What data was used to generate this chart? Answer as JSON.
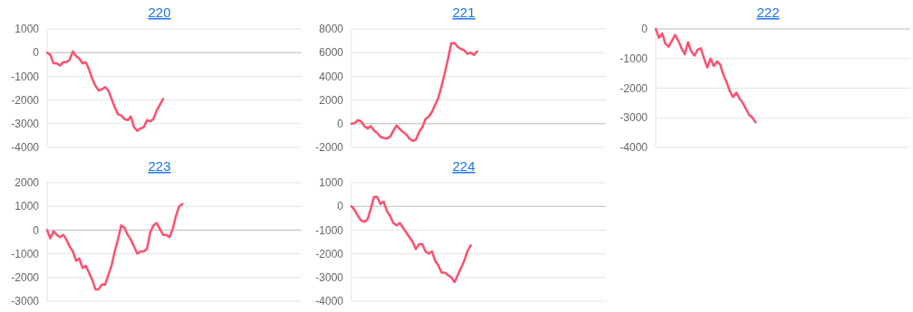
{
  "chart_data": [
    {
      "type": "line",
      "title": "220",
      "categories": [
        null,
        null,
        null,
        null,
        null,
        null,
        null,
        null,
        null,
        null,
        null,
        null,
        null,
        null,
        null,
        null,
        null,
        null,
        null,
        null,
        null,
        null,
        null,
        null,
        null,
        null,
        null,
        null,
        null,
        null,
        null,
        null,
        null,
        null,
        null,
        null,
        null,
        null,
        null,
        null,
        null,
        null,
        null,
        null,
        null,
        null,
        null,
        null,
        null,
        null,
        null,
        null,
        null,
        null,
        null,
        null,
        null,
        null,
        null,
        null,
        null,
        null,
        null,
        null,
        null,
        null,
        null,
        null,
        null,
        null,
        null,
        null,
        null,
        null,
        null,
        null,
        null,
        null,
        null,
        null
      ],
      "series": [
        {
          "color": "#ff4f6f",
          "values": [
            0,
            -100,
            -450,
            -450,
            -550,
            -400,
            -400,
            -300,
            50,
            -150,
            -250,
            -450,
            -400,
            -700,
            -1100,
            -1400,
            -1600,
            -1550,
            -1450,
            -1600,
            -1950,
            -2300,
            -2600,
            -2650,
            -2800,
            -2850,
            -2700,
            -3150,
            -3300,
            -3200,
            -3150,
            -2850,
            -2900,
            -2800,
            -2450,
            -2200,
            -1950,
            null,
            null,
            null,
            null,
            null,
            null,
            null,
            null,
            null,
            null,
            null,
            null,
            null,
            null,
            null,
            null,
            null,
            null,
            null,
            null,
            null,
            null,
            null,
            null,
            null,
            null,
            null,
            null,
            null,
            null,
            null,
            null,
            null,
            null,
            null,
            null,
            null,
            null,
            null,
            null,
            null,
            null,
            null
          ]
        }
      ],
      "ylim": [
        -4000,
        1000
      ],
      "yticks": [
        -4000,
        -3000,
        -2000,
        -1000,
        0,
        1000
      ],
      "grid": "y",
      "tick_labels": "y"
    },
    {
      "type": "line",
      "title": "221",
      "categories": [
        null,
        null,
        null,
        null,
        null,
        null,
        null,
        null,
        null,
        null,
        null,
        null,
        null,
        null,
        null,
        null,
        null,
        null,
        null,
        null,
        null,
        null,
        null,
        null,
        null,
        null,
        null,
        null,
        null,
        null,
        null,
        null,
        null,
        null,
        null,
        null,
        null,
        null,
        null,
        null,
        null,
        null,
        null,
        null,
        null,
        null,
        null,
        null,
        null,
        null,
        null,
        null,
        null,
        null,
        null,
        null,
        null,
        null,
        null,
        null,
        null,
        null,
        null,
        null,
        null,
        null,
        null,
        null,
        null,
        null,
        null,
        null,
        null,
        null,
        null,
        null,
        null,
        null,
        null,
        null
      ],
      "series": [
        {
          "color": "#ff4f6f",
          "values": [
            0,
            50,
            300,
            200,
            -200,
            -400,
            -200,
            -550,
            -800,
            -1100,
            -1200,
            -1250,
            -1100,
            -600,
            -150,
            -450,
            -700,
            -900,
            -1250,
            -1450,
            -1350,
            -700,
            -300,
            400,
            600,
            1000,
            1600,
            2200,
            3200,
            4300,
            5500,
            6800,
            6800,
            6500,
            6300,
            6200,
            5900,
            6000,
            5800,
            6100,
            null,
            null,
            null,
            null,
            null,
            null,
            null,
            null,
            null,
            null,
            null,
            null,
            null,
            null,
            null,
            null,
            null,
            null,
            null,
            null,
            null,
            null,
            null,
            null,
            null,
            null,
            null,
            null,
            null,
            null,
            null,
            null,
            null,
            null,
            null,
            null,
            null,
            null,
            null,
            null
          ]
        }
      ],
      "ylim": [
        -2000,
        8000
      ],
      "yticks": [
        -2000,
        0,
        2000,
        4000,
        6000,
        8000
      ],
      "grid": "y",
      "tick_labels": "y"
    },
    {
      "type": "line",
      "title": "222",
      "categories": [
        null,
        null,
        null,
        null,
        null,
        null,
        null,
        null,
        null,
        null,
        null,
        null,
        null,
        null,
        null,
        null,
        null,
        null,
        null,
        null,
        null,
        null,
        null,
        null,
        null,
        null,
        null,
        null,
        null,
        null,
        null,
        null,
        null,
        null,
        null,
        null,
        null,
        null,
        null,
        null,
        null,
        null,
        null,
        null,
        null,
        null,
        null,
        null,
        null,
        null,
        null,
        null,
        null,
        null,
        null,
        null,
        null,
        null,
        null,
        null,
        null,
        null,
        null,
        null,
        null,
        null,
        null,
        null,
        null,
        null,
        null,
        null,
        null,
        null,
        null,
        null,
        null,
        null,
        null,
        null
      ],
      "series": [
        {
          "color": "#ff4f6f",
          "values": [
            0,
            -300,
            -150,
            -500,
            -600,
            -400,
            -200,
            -400,
            -650,
            -850,
            -450,
            -750,
            -900,
            -700,
            -650,
            -1000,
            -1300,
            -1000,
            -1250,
            -1100,
            -1200,
            -1550,
            -1800,
            -2100,
            -2300,
            -2150,
            -2350,
            -2500,
            -2700,
            -2900,
            -3000,
            -3150,
            null,
            null,
            null,
            null,
            null,
            null,
            null,
            null,
            null,
            null,
            null,
            null,
            null,
            null,
            null,
            null,
            null,
            null,
            null,
            null,
            null,
            null,
            null,
            null,
            null,
            null,
            null,
            null,
            null,
            null,
            null,
            null,
            null,
            null,
            null,
            null,
            null,
            null,
            null,
            null,
            null,
            null,
            null,
            null,
            null,
            null,
            null,
            null
          ]
        }
      ],
      "ylim": [
        -4000,
        0
      ],
      "yticks": [
        -4000,
        -3000,
        -2000,
        -1000,
        0
      ],
      "grid": "y",
      "tick_labels": "y"
    },
    {
      "type": "line",
      "title": "223",
      "categories": [
        null,
        null,
        null,
        null,
        null,
        null,
        null,
        null,
        null,
        null,
        null,
        null,
        null,
        null,
        null,
        null,
        null,
        null,
        null,
        null,
        null,
        null,
        null,
        null,
        null,
        null,
        null,
        null,
        null,
        null,
        null,
        null,
        null,
        null,
        null,
        null,
        null,
        null,
        null,
        null,
        null,
        null,
        null,
        null,
        null,
        null,
        null,
        null,
        null,
        null,
        null,
        null,
        null,
        null,
        null,
        null,
        null,
        null,
        null,
        null,
        null,
        null,
        null,
        null,
        null,
        null,
        null,
        null,
        null,
        null,
        null,
        null,
        null,
        null,
        null,
        null,
        null,
        null,
        null,
        null
      ],
      "series": [
        {
          "color": "#ff4f6f",
          "values": [
            0,
            -350,
            -50,
            -200,
            -300,
            -200,
            -400,
            -700,
            -900,
            -1300,
            -1200,
            -1600,
            -1500,
            -1800,
            -2100,
            -2500,
            -2500,
            -2300,
            -2300,
            -1900,
            -1500,
            -900,
            -400,
            200,
            100,
            -200,
            -400,
            -700,
            -1000,
            -900,
            -900,
            -800,
            -100,
            200,
            300,
            50,
            -200,
            -200,
            -300,
            50,
            600,
            1000,
            1100,
            null,
            null,
            null,
            null,
            null,
            null,
            null,
            null,
            null,
            null,
            null,
            null,
            null,
            null,
            null,
            null,
            null,
            null,
            null,
            null,
            null,
            null,
            null,
            null,
            null,
            null,
            null,
            null,
            null,
            null,
            null,
            null,
            null,
            null,
            null,
            null,
            null
          ]
        }
      ],
      "ylim": [
        -3000,
        2000
      ],
      "yticks": [
        -3000,
        -2000,
        -1000,
        0,
        1000,
        2000
      ],
      "grid": "y",
      "tick_labels": "y"
    },
    {
      "type": "line",
      "title": "224",
      "categories": [
        null,
        null,
        null,
        null,
        null,
        null,
        null,
        null,
        null,
        null,
        null,
        null,
        null,
        null,
        null,
        null,
        null,
        null,
        null,
        null,
        null,
        null,
        null,
        null,
        null,
        null,
        null,
        null,
        null,
        null,
        null,
        null,
        null,
        null,
        null,
        null,
        null,
        null,
        null,
        null,
        null,
        null,
        null,
        null,
        null,
        null,
        null,
        null,
        null,
        null,
        null,
        null,
        null,
        null,
        null,
        null,
        null,
        null,
        null,
        null,
        null,
        null,
        null,
        null,
        null,
        null,
        null,
        null,
        null,
        null,
        null,
        null,
        null,
        null,
        null,
        null,
        null,
        null,
        null,
        null
      ],
      "series": [
        {
          "color": "#ff4f6f",
          "values": [
            0,
            -150,
            -400,
            -600,
            -650,
            -550,
            -100,
            400,
            400,
            100,
            200,
            -200,
            -400,
            -700,
            -800,
            -700,
            -900,
            -1100,
            -1300,
            -1500,
            -1800,
            -1600,
            -1600,
            -1900,
            -2000,
            -1900,
            -2300,
            -2500,
            -2800,
            -2800,
            -2900,
            -3000,
            -3200,
            -2900,
            -2600,
            -2300,
            -1900,
            -1650,
            null,
            null,
            null,
            null,
            null,
            null,
            null,
            null,
            null,
            null,
            null,
            null,
            null,
            null,
            null,
            null,
            null,
            null,
            null,
            null,
            null,
            null,
            null,
            null,
            null,
            null,
            null,
            null,
            null,
            null,
            null,
            null,
            null,
            null,
            null,
            null,
            null,
            null,
            null,
            null,
            null,
            null
          ]
        }
      ],
      "ylim": [
        -4000,
        1000
      ],
      "yticks": [
        -4000,
        -3000,
        -2000,
        -1000,
        0,
        1000
      ],
      "grid": "y",
      "tick_labels": "y"
    }
  ]
}
